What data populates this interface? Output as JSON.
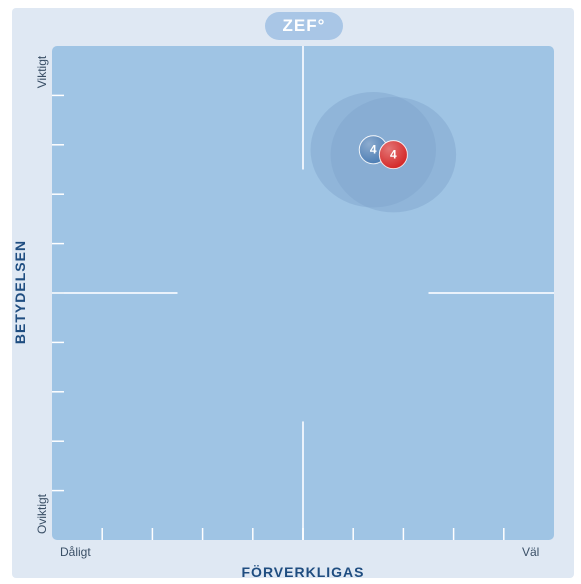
{
  "logo": {
    "text": "ZEF°"
  },
  "chart_data": {
    "type": "scatter",
    "xlabel": "FÖRVERKLIGAS",
    "ylabel": "BETYDELSEN",
    "x_min_label": "Dåligt",
    "x_max_label": "Väl",
    "y_max_label": "Viktigt",
    "y_min_label": "Oviktigt",
    "xlim": [
      0,
      10
    ],
    "ylim": [
      0,
      10
    ],
    "ticks": [
      1,
      2,
      3,
      4,
      5,
      6,
      7,
      8,
      9
    ],
    "grid": "center crosshair",
    "points": [
      {
        "x": 6.4,
        "y": 7.9,
        "label": "4",
        "color": "#4f7fb5",
        "spread": 2.5
      },
      {
        "x": 6.8,
        "y": 7.8,
        "label": "4",
        "color": "#d42a2a",
        "spread": 2.5
      }
    ]
  }
}
